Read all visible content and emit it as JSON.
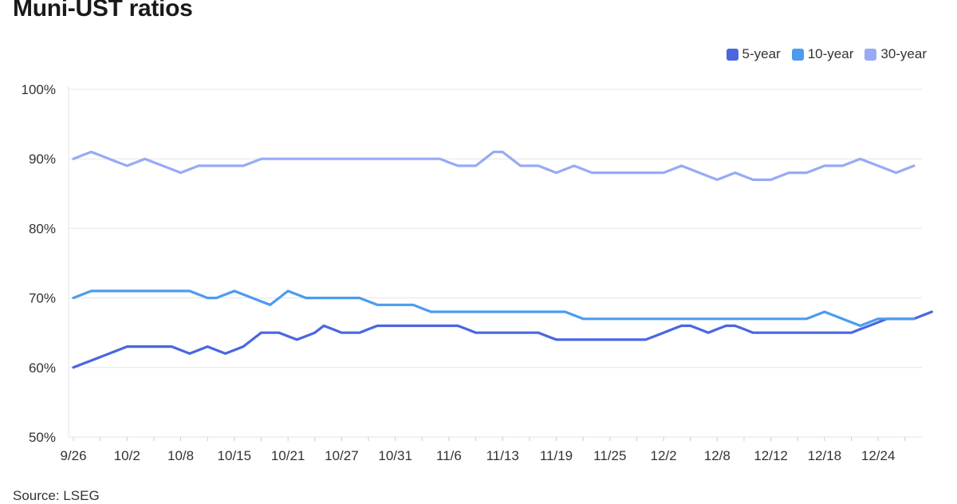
{
  "chart_data": {
    "type": "line",
    "title": "Muni-UST ratios",
    "source": "Source: LSEG",
    "ylim": [
      50,
      100
    ],
    "yticks": [
      "50%",
      "60%",
      "70%",
      "80%",
      "90%",
      "100%"
    ],
    "ytick_values": [
      50,
      60,
      70,
      80,
      90,
      100
    ],
    "xticks": [
      "9/26",
      "10/2",
      "10/8",
      "10/15",
      "10/21",
      "10/27",
      "10/31",
      "11/6",
      "11/13",
      "11/19",
      "11/25",
      "12/2",
      "12/8",
      "12/12",
      "12/18",
      "12/24"
    ],
    "xtick_index": [
      0,
      6,
      12,
      18,
      24,
      30,
      36,
      42,
      48,
      54,
      60,
      66,
      72,
      78,
      84,
      90
    ],
    "point_count": 95,
    "grid": true,
    "legend": "top-right",
    "series": [
      {
        "name": "5-year",
        "color": "#4a66e0",
        "values": [
          60,
          60.5,
          61,
          61.5,
          62,
          62.5,
          63,
          63,
          63,
          63,
          63,
          63,
          62.5,
          62,
          62.5,
          63,
          62.5,
          62,
          62.5,
          63,
          64,
          65,
          65,
          65,
          64.5,
          64,
          64.5,
          65,
          66,
          65.5,
          65,
          65,
          65,
          65.5,
          66,
          66,
          66,
          66,
          66,
          66,
          66,
          66,
          66,
          66,
          65.5,
          65,
          65,
          65,
          65,
          65,
          65,
          65,
          65,
          64.5,
          64,
          64,
          64,
          64,
          64,
          64,
          64,
          64,
          64,
          64,
          64,
          64.5,
          65,
          65.5,
          66,
          66,
          65.5,
          65,
          65.5,
          66,
          66,
          65.5,
          65,
          65,
          65,
          65,
          65,
          65,
          65,
          65,
          65,
          65,
          65,
          65,
          65.5,
          66,
          66.5,
          67,
          67,
          67,
          67,
          67.5,
          68
        ]
      },
      {
        "name": "10-year",
        "color": "#4c9cee",
        "values": [
          70,
          70.5,
          71,
          71,
          71,
          71,
          71,
          71,
          71,
          71,
          71,
          71,
          71,
          71,
          70.5,
          70,
          70,
          70.5,
          71,
          70.5,
          70,
          69.5,
          69,
          70,
          71,
          70.5,
          70,
          70,
          70,
          70,
          70,
          70,
          70,
          69.5,
          69,
          69,
          69,
          69,
          69,
          68.5,
          68,
          68,
          68,
          68,
          68,
          68,
          68,
          68,
          68,
          68,
          68,
          68,
          68,
          68,
          68,
          68,
          67.5,
          67,
          67,
          67,
          67,
          67,
          67,
          67,
          67,
          67,
          67,
          67,
          67,
          67,
          67,
          67,
          67,
          67,
          67,
          67,
          67,
          67,
          67,
          67,
          67,
          67,
          67,
          67.5,
          68,
          67.5,
          67,
          66.5,
          66,
          66.5,
          67,
          67,
          67,
          67,
          67
        ]
      },
      {
        "name": "30-year",
        "color": "#98aaf5",
        "values": [
          90,
          90.5,
          91,
          90.5,
          90,
          89.5,
          89,
          89.5,
          90,
          89.5,
          89,
          88.5,
          88,
          88.5,
          89,
          89,
          89,
          89,
          89,
          89,
          89.5,
          90,
          90,
          90,
          90,
          90,
          90,
          90,
          90,
          90,
          90,
          90,
          90,
          90,
          90,
          90,
          90,
          90,
          90,
          90,
          90,
          90,
          89.5,
          89,
          89,
          89,
          90,
          91,
          91,
          90,
          89,
          89,
          89,
          88.5,
          88,
          88.5,
          89,
          88.5,
          88,
          88,
          88,
          88,
          88,
          88,
          88,
          88,
          88,
          88.5,
          89,
          88.5,
          88,
          87.5,
          87,
          87.5,
          88,
          87.5,
          87,
          87,
          87,
          87.5,
          88,
          88,
          88,
          88.5,
          89,
          89,
          89,
          89.5,
          90,
          89.5,
          89,
          88.5,
          88,
          88.5,
          89
        ]
      }
    ]
  }
}
